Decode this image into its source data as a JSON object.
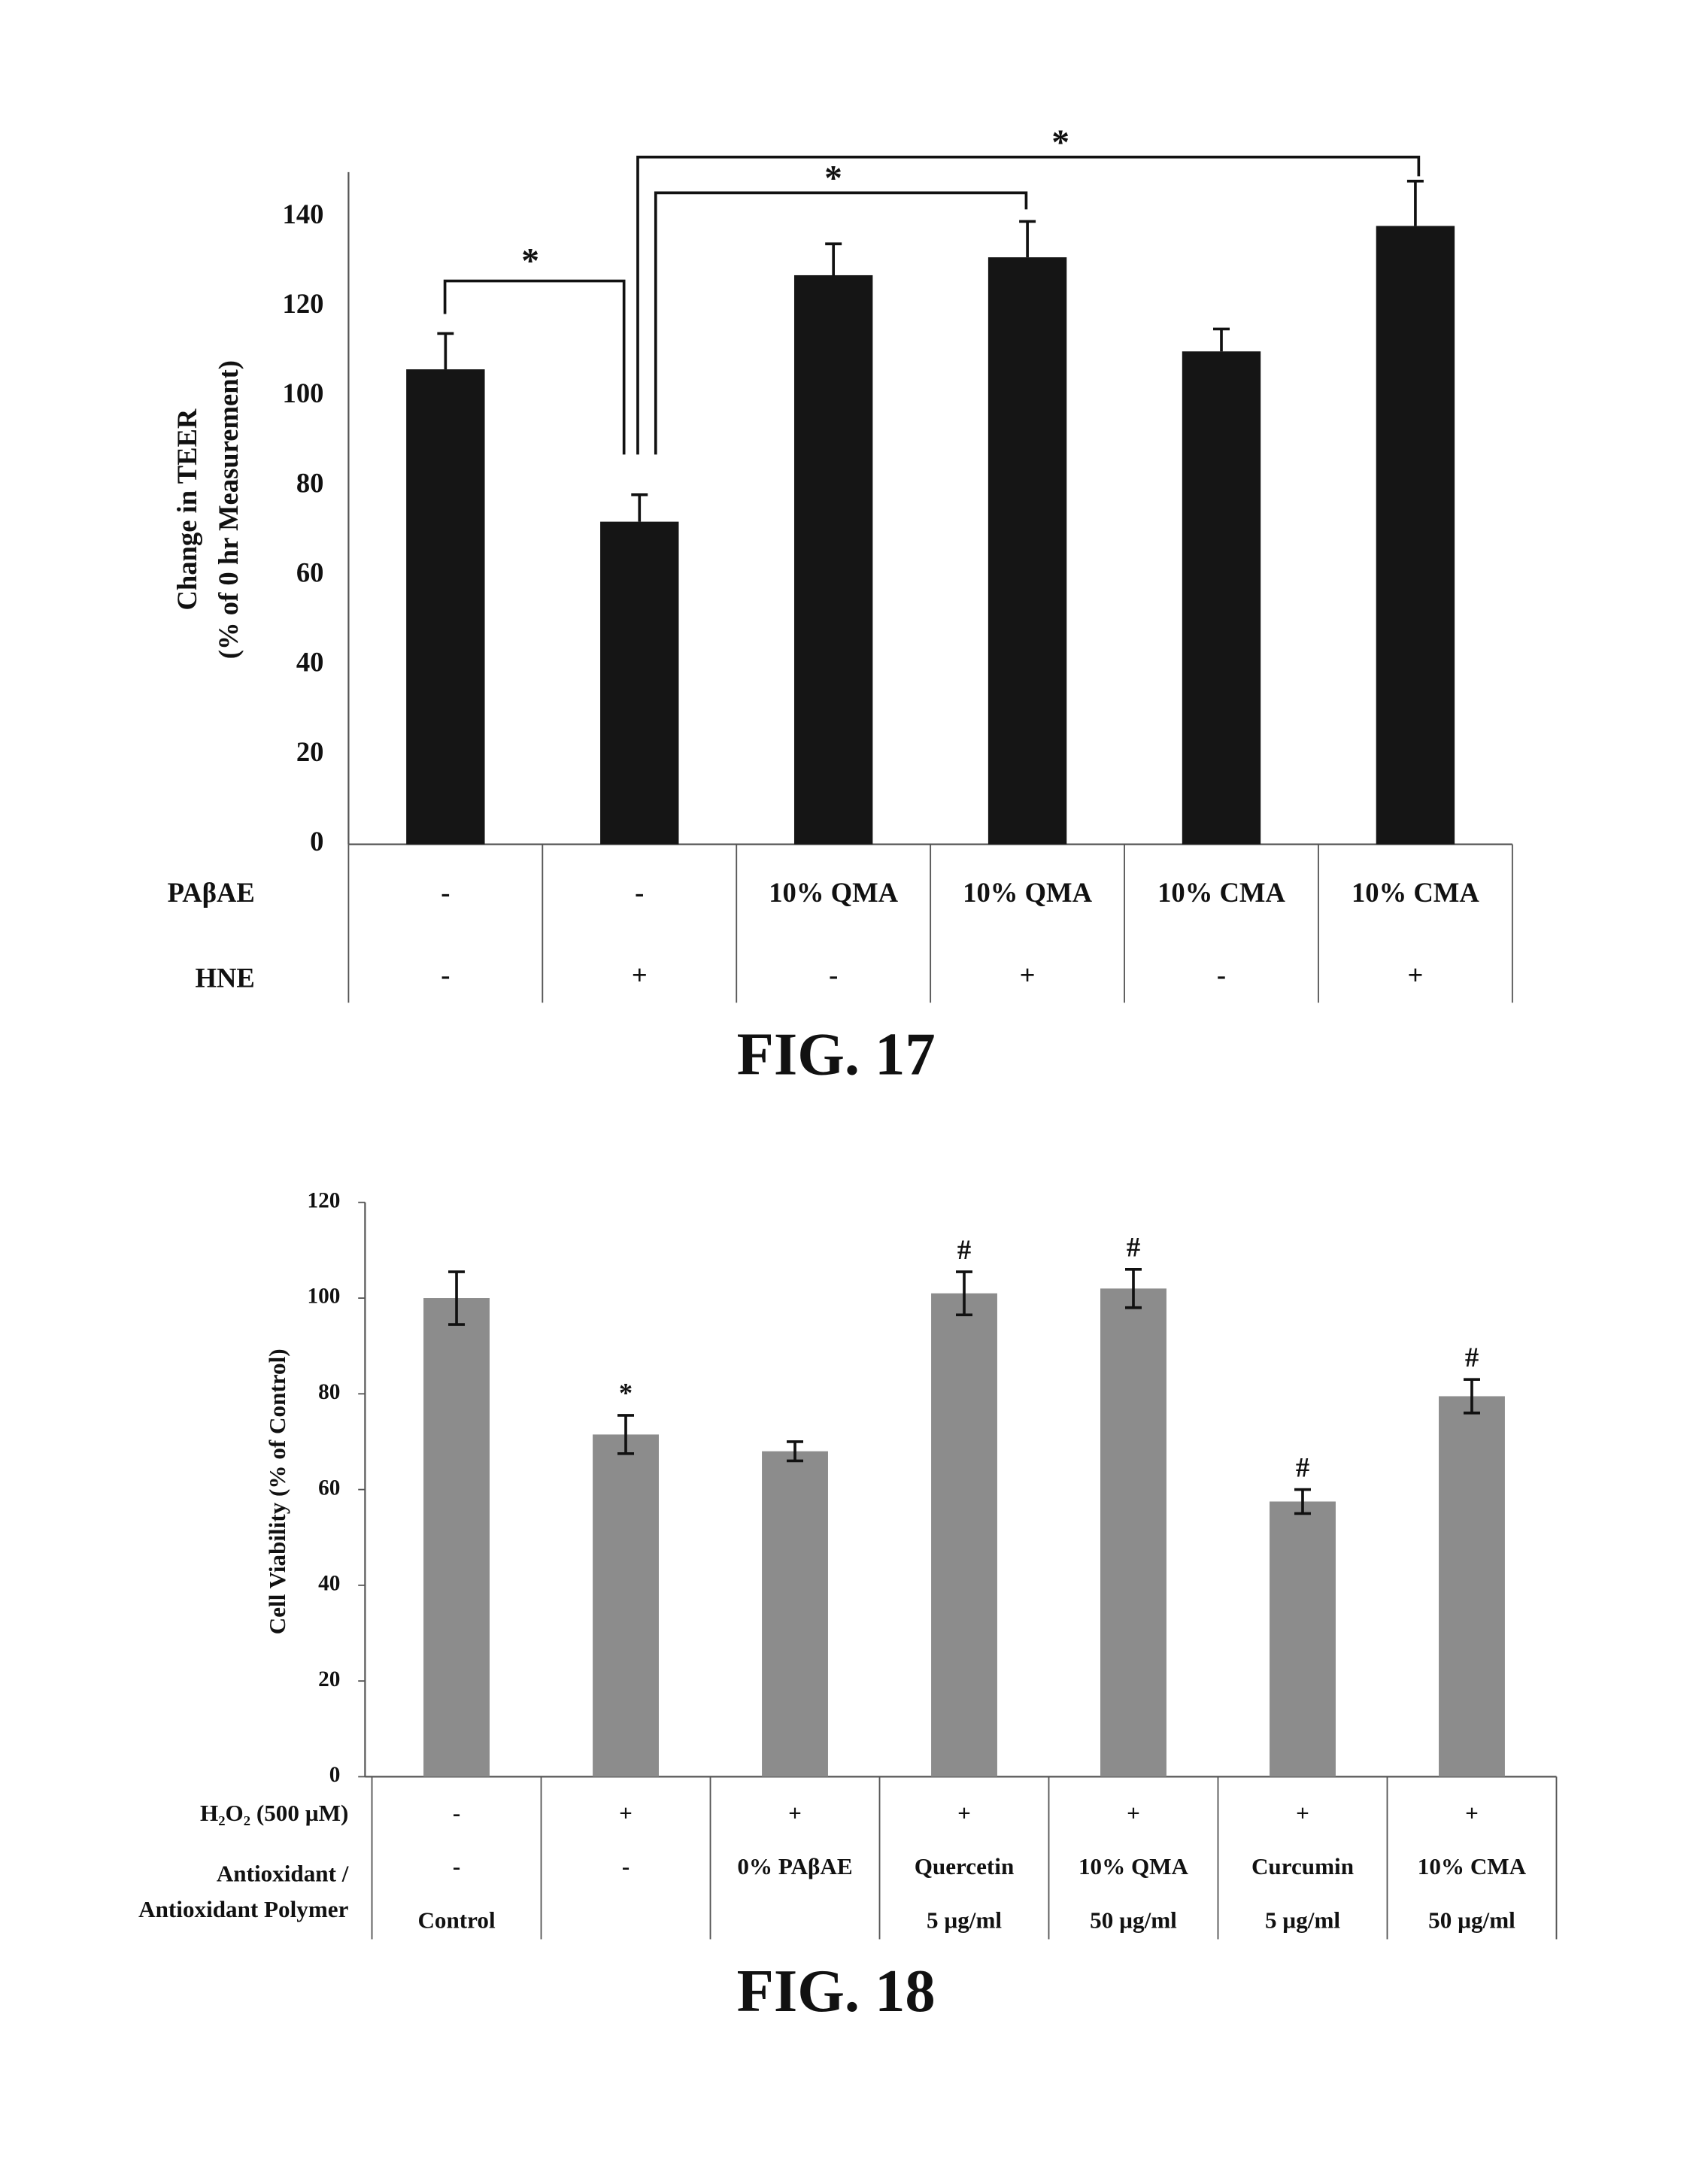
{
  "chart_data": [
    {
      "type": "bar",
      "caption": "FIG. 17",
      "y_label": [
        "Change in TEER",
        "(% of 0 hr Measurement)"
      ],
      "category_rows": [
        {
          "name": "PAβAE",
          "labels": [
            "-",
            "-",
            "10% QMA",
            "10% QMA",
            "10% CMA",
            "10% CMA"
          ]
        },
        {
          "name": "HNE",
          "labels": [
            "-",
            "+",
            "-",
            "+",
            "-",
            "+"
          ]
        }
      ],
      "values": [
        106,
        72,
        127,
        131,
        110,
        138
      ],
      "errors": [
        8,
        6,
        7,
        8,
        5,
        10
      ],
      "color": "#151515",
      "ylim": [
        0,
        150
      ],
      "yticks": [
        0,
        20,
        40,
        60,
        80,
        100,
        120,
        140
      ],
      "annotations": [
        "*",
        "*",
        "*"
      ]
    },
    {
      "type": "bar",
      "caption": "FIG. 18",
      "y_label": [
        "Cell Viability (% of Control)"
      ],
      "category_rows": [
        {
          "name": [
            "H₂O₂ (500 µM)"
          ],
          "labels": [
            "-",
            "+",
            "+",
            "+",
            "+",
            "+",
            "+"
          ]
        },
        {
          "name": [
            "Antioxidant /",
            "Antioxidant Polymer"
          ],
          "labels": [
            "-",
            "-",
            "0% PAβAE",
            "Quercetin",
            "10% QMA",
            "Curcumin",
            "10% CMA"
          ]
        },
        {
          "name": null,
          "labels": [
            "Control",
            null,
            null,
            "5 µg/ml",
            "50 µg/ml",
            "5 µg/ml",
            "50 µg/ml"
          ]
        }
      ],
      "values": [
        100,
        71.5,
        68,
        101,
        102,
        57.5,
        79.5
      ],
      "errors": [
        5.5,
        4,
        2,
        4.5,
        4,
        2.5,
        3.5
      ],
      "markers": [
        null,
        "*",
        null,
        "#",
        "#",
        "#",
        "#"
      ],
      "color": "#8c8c8c",
      "ylim": [
        0,
        120
      ],
      "yticks": [
        0,
        20,
        40,
        60,
        80,
        100,
        120
      ]
    }
  ]
}
